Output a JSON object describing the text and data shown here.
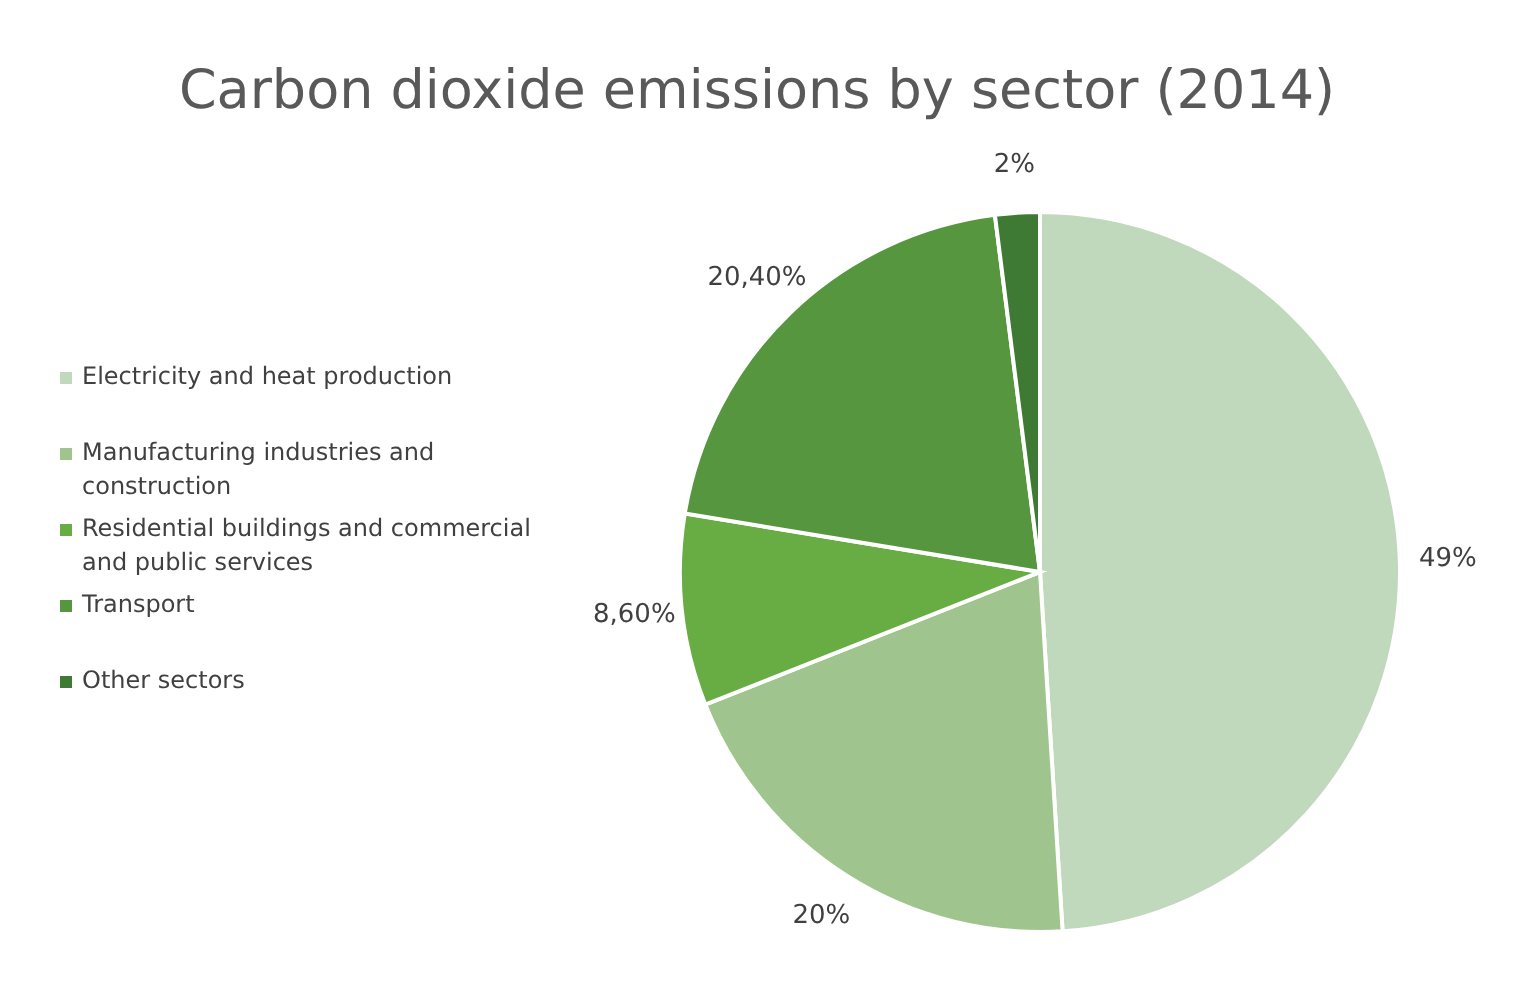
{
  "chart_data": {
    "type": "pie",
    "title": "Carbon dioxide emissions by sector (2014)",
    "categories": [
      "Electricity and heat production",
      "Manufacturing industries and construction",
      "Residential buildings and commercial and public services",
      "Transport",
      "Other sectors"
    ],
    "values": [
      49,
      20,
      8.6,
      20.4,
      2
    ],
    "value_labels": [
      "49%",
      "20%",
      "8,60%",
      "20,40%",
      "2%"
    ],
    "colors": [
      "#c0d8bb",
      "#a0c48e",
      "#68ac44",
      "#56963f",
      "#3f7a35"
    ],
    "legend": "left"
  }
}
